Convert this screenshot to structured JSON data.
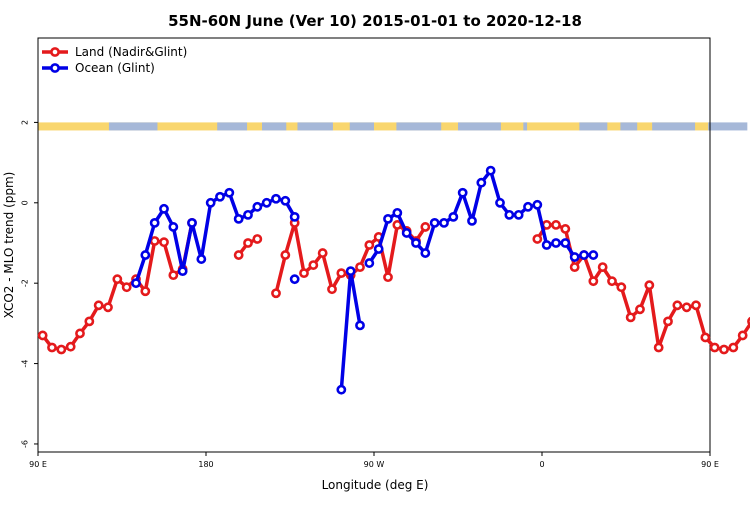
{
  "chart_data": {
    "type": "line",
    "title": "55N-60N June (Ver 10)   2015-01-01 to 2020-12-18",
    "xlabel": "Longitude (deg E)",
    "ylabel": "XCO2 - MLO trend (ppm)",
    "xlim": [
      90,
      450
    ],
    "ylim": [
      -6.2,
      4.1
    ],
    "x_ticks": [
      {
        "value": 90,
        "label": "90 E"
      },
      {
        "value": 180,
        "label": "180"
      },
      {
        "value": 270,
        "label": "90 W"
      },
      {
        "value": 360,
        "label": "0"
      },
      {
        "value": 450,
        "label": "90 E"
      },
      {
        "value": 540,
        "label": "180"
      }
    ],
    "y_ticks": [
      {
        "value": 2,
        "label": "2"
      },
      {
        "value": 0,
        "label": "0"
      },
      {
        "value": -2,
        "label": "-2"
      },
      {
        "value": -4,
        "label": "-4"
      },
      {
        "value": -6,
        "label": "-6"
      }
    ],
    "grid": false,
    "legend_position": "top-left",
    "land_ocean_band": {
      "y_from": 1.8,
      "y_to": 2.0,
      "land_color": "#f9d66e",
      "ocean_color": "#a6b8d8"
    },
    "series": [
      {
        "name": "Land (Nadir&Glint)",
        "color": "#e41a1c",
        "segments": [
          {
            "x": [
              92.5,
              97.5,
              102.5,
              107.5,
              112.5,
              117.5,
              122.5,
              127.5,
              132.5,
              137.5,
              142.5,
              147.5,
              152.5,
              157.5,
              162.5,
              167.5,
              172.5
            ],
            "y": [
              -3.3,
              -3.6,
              -3.65,
              -3.58,
              -3.25,
              -2.95,
              -2.55,
              -2.6,
              -1.9,
              -2.1,
              -1.9,
              -2.2,
              -0.95,
              -0.98,
              -1.8,
              -1.65,
              -0.5
            ]
          },
          {
            "x": [
              197.5,
              202.5,
              207.5
            ],
            "y": [
              -1.3,
              -1.0,
              -0.9
            ]
          },
          {
            "x": [
              217.5,
              222.5,
              227.5,
              232.5,
              237.5,
              242.5,
              247.5,
              252.5,
              257.5,
              262.5,
              267.5,
              272.5,
              277.5,
              282.5,
              287.5,
              292.5,
              297.5
            ],
            "y": [
              -2.25,
              -1.3,
              -0.5,
              -1.75,
              -1.55,
              -1.25,
              -2.15,
              -1.75,
              -1.8,
              -1.6,
              -1.05,
              -0.85,
              -1.85,
              -0.55,
              -0.7,
              -0.95,
              -0.6
            ]
          },
          {
            "x": [
              357.5,
              362.5,
              367.5,
              372.5,
              377.5,
              382.5,
              387.5,
              392.5,
              397.5,
              402.5,
              407.5,
              412.5,
              417.5,
              422.5,
              427.5,
              432.5,
              437.5,
              442.5,
              447.5,
              452.5,
              457.5,
              462.5,
              467.5,
              472.5,
              477.5,
              482.5,
              487.5,
              492.5,
              497.5,
              502.5,
              507.5,
              512.5,
              517.5,
              522.5,
              527.5
            ],
            "y": [
              -0.9,
              -0.55,
              -0.55,
              -0.65,
              -1.6,
              -1.3,
              -1.95,
              -1.6,
              -1.95,
              -2.1,
              -2.85,
              -2.65,
              -2.05,
              -3.6,
              -2.95,
              -2.55,
              -2.6,
              -2.55,
              -3.35,
              -3.6,
              -3.65,
              -3.6,
              -3.3,
              -2.95,
              -2.55,
              -2.6,
              -1.9,
              -2.1,
              -1.9,
              -2.2,
              -0.95,
              -0.98,
              -1.8,
              -1.65,
              -0.5
            ]
          }
        ]
      },
      {
        "name": "Ocean (Glint)",
        "color": "#0000e6",
        "segments": [
          {
            "x": [
              142.5,
              147.5,
              152.5,
              157.5,
              162.5,
              167.5,
              172.5,
              177.5,
              182.5,
              187.5,
              192.5,
              197.5,
              202.5,
              207.5,
              212.5,
              217.5,
              222.5,
              227.5
            ],
            "y": [
              -2.0,
              -1.3,
              -0.5,
              -0.15,
              -0.6,
              -1.7,
              -0.5,
              -1.4,
              0.0,
              0.15,
              0.25,
              -0.4,
              -0.3,
              -0.1,
              0.0,
              0.1,
              0.05,
              -0.35
            ]
          },
          {
            "x": [
              227.5
            ],
            "y": [
              -1.9
            ]
          },
          {
            "x": [
              252.5,
              257.5,
              262.5
            ],
            "y": [
              -4.65,
              -1.7,
              -3.05
            ]
          },
          {
            "x": [
              267.5,
              272.5,
              277.5,
              282.5,
              287.5,
              292.5,
              297.5,
              302.5,
              307.5,
              312.5,
              317.5,
              322.5,
              327.5,
              332.5,
              337.5,
              342.5,
              347.5,
              352.5,
              357.5,
              362.5,
              367.5,
              372.5,
              377.5,
              382.5,
              387.5
            ],
            "y": [
              -1.5,
              -1.15,
              -0.4,
              -0.25,
              -0.75,
              -1.0,
              -1.25,
              -0.5,
              -0.5,
              -0.35,
              0.25,
              -0.45,
              0.5,
              0.8,
              0.0,
              -0.3,
              -0.3,
              -0.1,
              -0.05,
              -1.05,
              -1.0,
              -1.0,
              -1.35,
              -1.3,
              -1.3
            ]
          },
          {
            "x": [
              502.5,
              507.5,
              512.5,
              517.5,
              522.5,
              527.5,
              532.5,
              537.5
            ],
            "y": [
              -2.0,
              -1.3,
              -0.5,
              -0.15,
              -0.6,
              -1.7,
              -0.5,
              -1.4
            ]
          },
          {
            "x": [
              537.5,
              540.0
            ],
            "y": [
              -1.4,
              0.0
            ]
          }
        ]
      }
    ]
  }
}
